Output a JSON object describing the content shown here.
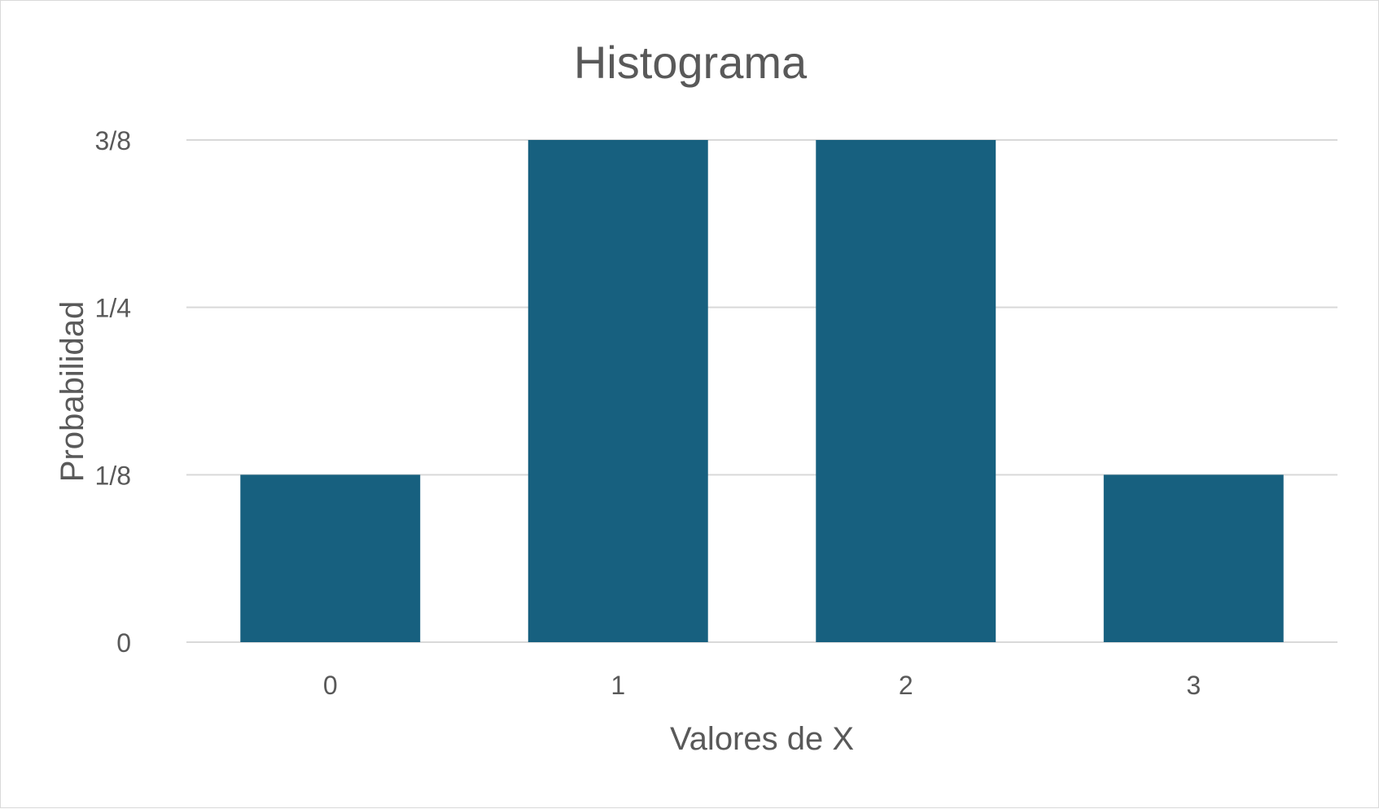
{
  "chart_data": {
    "type": "bar",
    "title": "Histograma",
    "xlabel": "Valores de X",
    "ylabel": "Probabilidad",
    "categories": [
      "0",
      "1",
      "2",
      "3"
    ],
    "values": [
      0.125,
      0.375,
      0.375,
      0.125
    ],
    "ylim": [
      0,
      0.375
    ],
    "yticks": [
      {
        "value": 0,
        "label": "0"
      },
      {
        "value": 0.125,
        "label": "1/8"
      },
      {
        "value": 0.25,
        "label": "1/4"
      },
      {
        "value": 0.375,
        "label": "3/8"
      }
    ],
    "grid": true,
    "legend": "none",
    "colors": {
      "bar": "#17607f",
      "grid": "#d9d9d9",
      "text": "#595959",
      "border": "#d9d9d9"
    }
  }
}
